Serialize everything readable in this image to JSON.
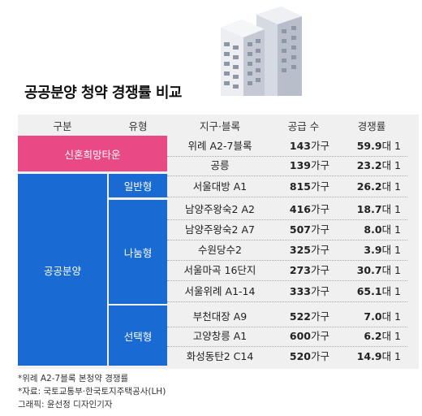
{
  "title": "공공분양 청약 경쟁률 비교",
  "headers": [
    "구분",
    "유형",
    "지구·블록",
    "공급 수",
    "경쟁률"
  ],
  "groups": {
    "pink": "신혼희망타운",
    "blue": "공공분양",
    "types": [
      "일반형",
      "나눔형",
      "선택형"
    ]
  },
  "rows": [
    {
      "block": "위례 A2-7블록",
      "supply": "143",
      "supply_unit": "가구",
      "ratio": "59.9",
      "ratio_unit": "대 1"
    },
    {
      "block": "공릉",
      "supply": "139",
      "supply_unit": "가구",
      "ratio": "23.2",
      "ratio_unit": "대 1"
    },
    {
      "block": "서울대방 A1",
      "supply": "815",
      "supply_unit": "가구",
      "ratio": "26.2",
      "ratio_unit": "대 1"
    },
    {
      "block": "남양주왕숙2 A2",
      "supply": "416",
      "supply_unit": "가구",
      "ratio": "18.7",
      "ratio_unit": "대 1"
    },
    {
      "block": "남양주왕숙2 A7",
      "supply": "507",
      "supply_unit": "가구",
      "ratio": "8.0",
      "ratio_unit": "대 1"
    },
    {
      "block": "수원당수2",
      "supply": "325",
      "supply_unit": "가구",
      "ratio": "3.9",
      "ratio_unit": "대 1"
    },
    {
      "block": "서울마곡 16단지",
      "supply": "273",
      "supply_unit": "가구",
      "ratio": "30.7",
      "ratio_unit": "대 1"
    },
    {
      "block": "서울위례 A1-14",
      "supply": "333",
      "supply_unit": "가구",
      "ratio": "65.1",
      "ratio_unit": "대 1"
    },
    {
      "block": "부천대장 A9",
      "supply": "522",
      "supply_unit": "가구",
      "ratio": "7.0",
      "ratio_unit": "대 1"
    },
    {
      "block": "고양창릉 A1",
      "supply": "600",
      "supply_unit": "가구",
      "ratio": "6.2",
      "ratio_unit": "대 1"
    },
    {
      "block": "화성동탄2 C14",
      "supply": "520",
      "supply_unit": "가구",
      "ratio": "14.9",
      "ratio_unit": "대 1"
    }
  ],
  "notes": [
    "*위례 A2-7블록 본청약 경쟁률",
    "*자료: 국토교통부·한국토지주택공사(LH)",
    "그래픽: 윤선정 디자인기자"
  ],
  "colors": {
    "pink": "#e94a86",
    "blue": "#1a6ad3",
    "panel": "#f0f0f0"
  },
  "icons": [
    "building-illustration"
  ]
}
